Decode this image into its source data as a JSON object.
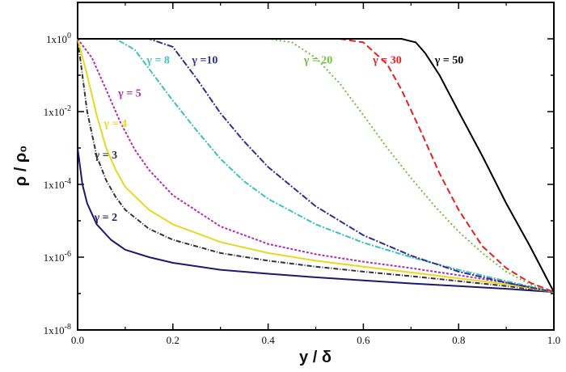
{
  "chart_data": {
    "type": "line",
    "xlabel": "y / δ",
    "ylabel": "ρ / ρ₀",
    "xlim": [
      0.0,
      1.0
    ],
    "ylim": [
      1e-08,
      10
    ],
    "yscale": "log",
    "grid": false,
    "x_ticks": [
      "0.0",
      "0.2",
      "0.4",
      "0.6",
      "0.8",
      "1.0"
    ],
    "y_ticks": [
      {
        "base": "1x10",
        "exp": "0"
      },
      {
        "base": "1x10",
        "exp": "-2"
      },
      {
        "base": "1x10",
        "exp": "-4"
      },
      {
        "base": "1x10",
        "exp": "-6"
      },
      {
        "base": "1x10",
        "exp": "-8"
      }
    ],
    "series": [
      {
        "name": "γ = 2",
        "color": "#1a1a6e",
        "dash": "",
        "x": [
          0,
          0.01,
          0.02,
          0.04,
          0.07,
          0.1,
          0.15,
          0.2,
          0.3,
          0.4,
          0.5,
          0.6,
          0.7,
          0.8,
          0.9,
          1.0
        ],
        "y": [
          0.001,
          0.0001,
          3e-05,
          8e-06,
          3e-06,
          1.6e-06,
          1e-06,
          7e-07,
          4.5e-07,
          3.5e-07,
          2.8e-07,
          2.3e-07,
          1.9e-07,
          1.6e-07,
          1.35e-07,
          1.1e-07
        ]
      },
      {
        "name": "γ = 3",
        "color": "#333333",
        "dash": "6,2,1,2",
        "x": [
          0,
          0.01,
          0.02,
          0.04,
          0.06,
          0.08,
          0.1,
          0.15,
          0.2,
          0.3,
          0.4,
          0.5,
          0.6,
          0.7,
          0.8,
          0.9,
          1.0
        ],
        "y": [
          1,
          0.1,
          0.01,
          0.0006,
          0.00013,
          4.5e-05,
          2e-05,
          6e-06,
          3e-06,
          1.3e-06,
          8e-07,
          5.5e-07,
          4e-07,
          3e-07,
          2.2e-07,
          1.6e-07,
          1.1e-07
        ]
      },
      {
        "name": "γ = 4",
        "color": "#e8d820",
        "dash": "",
        "x": [
          0,
          0.02,
          0.04,
          0.06,
          0.08,
          0.1,
          0.15,
          0.2,
          0.3,
          0.4,
          0.5,
          0.6,
          0.7,
          0.8,
          0.9,
          1.0
        ],
        "y": [
          1,
          0.1,
          0.008,
          0.001,
          0.00025,
          8.5e-05,
          2e-05,
          8e-06,
          2.6e-06,
          1.3e-06,
          8e-07,
          5.5e-07,
          3.8e-07,
          2.6e-07,
          1.8e-07,
          1.1e-07
        ]
      },
      {
        "name": "γ = 5",
        "color": "#b030b0",
        "dash": "3,2",
        "x": [
          0,
          0.03,
          0.06,
          0.09,
          0.12,
          0.15,
          0.2,
          0.3,
          0.4,
          0.5,
          0.6,
          0.7,
          0.8,
          0.9,
          1.0
        ],
        "y": [
          1,
          0.3,
          0.04,
          0.005,
          0.0009,
          0.00025,
          5e-05,
          7e-06,
          2.3e-06,
          1.2e-06,
          7.5e-07,
          5e-07,
          3.2e-07,
          2e-07,
          1.1e-07
        ]
      },
      {
        "name": "γ = 8",
        "color": "#40c0c0",
        "dash": "7,2,2,2",
        "x": [
          0,
          0.08,
          0.12,
          0.16,
          0.2,
          0.25,
          0.3,
          0.35,
          0.4,
          0.5,
          0.6,
          0.7,
          0.8,
          0.9,
          1.0
        ],
        "y": [
          1,
          1,
          0.5,
          0.1,
          0.02,
          0.003,
          0.0005,
          0.00012,
          4e-05,
          8e-06,
          2.5e-06,
          1e-06,
          4.5e-07,
          2.2e-07,
          1.1e-07
        ]
      },
      {
        "name": "γ =10",
        "color": "#303090",
        "dash": "8,2,2,2",
        "x": [
          0,
          0.15,
          0.2,
          0.25,
          0.3,
          0.35,
          0.4,
          0.5,
          0.6,
          0.7,
          0.8,
          0.9,
          1.0
        ],
        "y": [
          1,
          1,
          0.6,
          0.08,
          0.009,
          0.0015,
          0.0003,
          2.5e-05,
          4e-06,
          1.1e-06,
          4e-07,
          2e-07,
          1.1e-07
        ]
      },
      {
        "name": "γ = 20",
        "color": "#70c040",
        "dash": "2,3",
        "x": [
          0,
          0.4,
          0.45,
          0.5,
          0.55,
          0.6,
          0.65,
          0.7,
          0.75,
          0.8,
          0.85,
          0.9,
          0.95,
          1.0
        ],
        "y": [
          1,
          1,
          0.8,
          0.3,
          0.06,
          0.008,
          0.001,
          0.00015,
          2.5e-05,
          5e-06,
          1.3e-06,
          4e-07,
          1.8e-07,
          1.1e-07
        ]
      },
      {
        "name": "γ = 30",
        "color": "#e82020",
        "dash": "8,4",
        "x": [
          0,
          0.55,
          0.6,
          0.65,
          0.68,
          0.72,
          0.76,
          0.8,
          0.85,
          0.9,
          0.95,
          1.0
        ],
        "y": [
          1,
          1,
          0.8,
          0.2,
          0.04,
          0.003,
          0.0002,
          2e-05,
          2e-06,
          5e-07,
          2e-07,
          1.1e-07
        ]
      },
      {
        "name": "γ = 50",
        "color": "#000000",
        "dash": "",
        "x": [
          0,
          0.68,
          0.71,
          0.73,
          0.76,
          0.8,
          0.85,
          0.9,
          0.95,
          0.98,
          1.0
        ],
        "y": [
          1,
          1,
          0.8,
          0.4,
          0.1,
          0.01,
          0.0006,
          3e-05,
          2e-06,
          3.5e-07,
          1.1e-07
        ]
      }
    ],
    "labels": [
      {
        "series": 0,
        "x": 0.035,
        "y": 1e-05
      },
      {
        "series": 1,
        "x": 0.035,
        "y": 0.00052
      },
      {
        "series": 2,
        "x": 0.055,
        "y": 0.0038
      },
      {
        "series": 3,
        "x": 0.085,
        "y": 0.026
      },
      {
        "series": 4,
        "x": 0.145,
        "y": 0.21
      },
      {
        "series": 5,
        "x": 0.24,
        "y": 0.21
      },
      {
        "series": 6,
        "x": 0.475,
        "y": 0.21
      },
      {
        "series": 7,
        "x": 0.62,
        "y": 0.21
      },
      {
        "series": 8,
        "x": 0.75,
        "y": 0.21
      }
    ]
  }
}
